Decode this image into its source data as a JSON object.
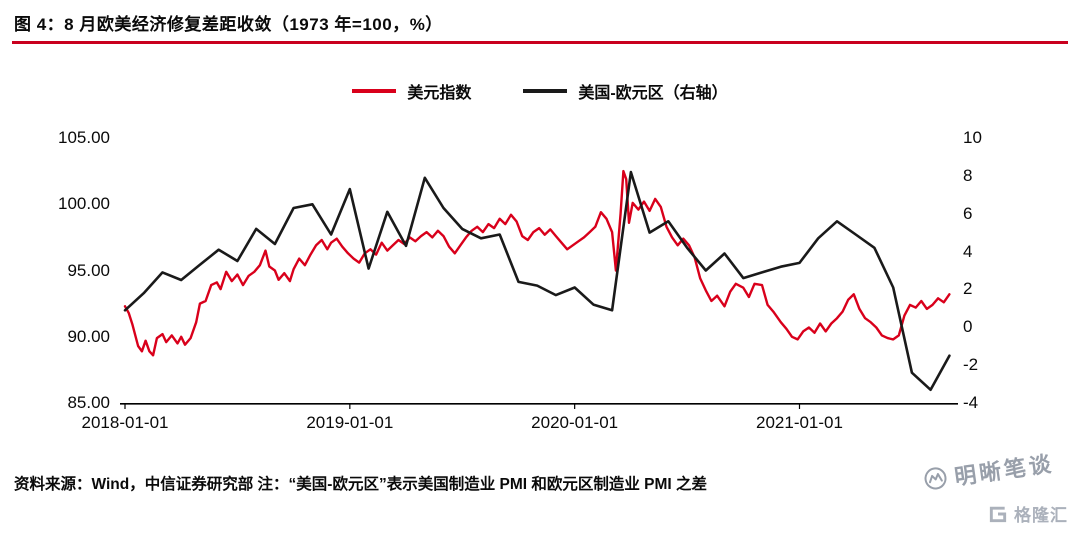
{
  "title": "图 4：8 月欧美经济修复差距收敛（1973 年=100，%）",
  "legend": [
    {
      "label": "美元指数",
      "color": "#d9001b"
    },
    {
      "label": "美国-欧元区（右轴）",
      "color": "#1a1a1a"
    }
  ],
  "source_note": "资料来源：Wind，中信证券研究部  注：“美国-欧元区”表示美国制造业 PMI 和欧元区制造业 PMI 之差",
  "watermark_text": "明晰笔谈",
  "logo_text": "格隆汇",
  "colors": {
    "divider": "#c9001e",
    "usd_line": "#d9001b",
    "pmi_line": "#1a1a1a",
    "axis": "#000000"
  },
  "chart_data": {
    "type": "line",
    "title": "8 月欧美经济修复差距收敛（1973 年=100，%）",
    "grid": false,
    "legend_position": "top-center",
    "t_unit": "months since 2018-01-01",
    "t_max": 44.3,
    "x_axis": {
      "ticks": [
        {
          "t": 0,
          "label": "2018-01-01"
        },
        {
          "t": 12,
          "label": "2019-01-01"
        },
        {
          "t": 24,
          "label": "2020-01-01"
        },
        {
          "t": 36,
          "label": "2021-01-01"
        }
      ]
    },
    "left_axis": {
      "range": [
        85,
        105
      ],
      "ticks": [
        {
          "v": 85,
          "label": "85.00"
        },
        {
          "v": 90,
          "label": "90.00"
        },
        {
          "v": 95,
          "label": "95.00"
        },
        {
          "v": 100,
          "label": "100.00"
        },
        {
          "v": 105,
          "label": "105.00"
        }
      ]
    },
    "right_axis": {
      "range": [
        -4,
        10
      ],
      "ticks": [
        {
          "v": -4,
          "label": "-4"
        },
        {
          "v": -2,
          "label": "-2"
        },
        {
          "v": 0,
          "label": "0"
        },
        {
          "v": 2,
          "label": "2"
        },
        {
          "v": 4,
          "label": "4"
        },
        {
          "v": 6,
          "label": "6"
        },
        {
          "v": 8,
          "label": "8"
        },
        {
          "v": 10,
          "label": "10"
        }
      ]
    },
    "series": [
      {
        "key": "usd-index",
        "name": "美元指数",
        "axis": "left",
        "color": "#d9001b",
        "width": 2.4,
        "points": [
          [
            0,
            92.3
          ],
          [
            0.2,
            91.8
          ],
          [
            0.4,
            90.9
          ],
          [
            0.7,
            89.3
          ],
          [
            0.9,
            88.9
          ],
          [
            1.1,
            89.7
          ],
          [
            1.3,
            88.9
          ],
          [
            1.5,
            88.6
          ],
          [
            1.7,
            89.9
          ],
          [
            2,
            90.2
          ],
          [
            2.2,
            89.6
          ],
          [
            2.5,
            90.1
          ],
          [
            2.8,
            89.5
          ],
          [
            3,
            90
          ],
          [
            3.2,
            89.4
          ],
          [
            3.5,
            89.9
          ],
          [
            3.8,
            91.1
          ],
          [
            4,
            92.5
          ],
          [
            4.3,
            92.7
          ],
          [
            4.6,
            93.9
          ],
          [
            4.9,
            94.1
          ],
          [
            5.1,
            93.6
          ],
          [
            5.4,
            94.9
          ],
          [
            5.7,
            94.2
          ],
          [
            6,
            94.7
          ],
          [
            6.3,
            93.9
          ],
          [
            6.6,
            94.6
          ],
          [
            6.9,
            94.9
          ],
          [
            7.2,
            95.4
          ],
          [
            7.5,
            96.5
          ],
          [
            7.7,
            95.3
          ],
          [
            8,
            95
          ],
          [
            8.2,
            94.3
          ],
          [
            8.5,
            94.8
          ],
          [
            8.8,
            94.2
          ],
          [
            9,
            95.1
          ],
          [
            9.3,
            95.9
          ],
          [
            9.6,
            95.4
          ],
          [
            9.9,
            96.2
          ],
          [
            10.2,
            96.9
          ],
          [
            10.5,
            97.3
          ],
          [
            10.8,
            96.6
          ],
          [
            11,
            97.1
          ],
          [
            11.3,
            97.4
          ],
          [
            11.6,
            96.8
          ],
          [
            11.9,
            96.3
          ],
          [
            12.2,
            95.9
          ],
          [
            12.5,
            95.6
          ],
          [
            12.8,
            96.3
          ],
          [
            13.1,
            96.6
          ],
          [
            13.4,
            96.2
          ],
          [
            13.7,
            97.1
          ],
          [
            14,
            96.5
          ],
          [
            14.3,
            96.9
          ],
          [
            14.6,
            97.3
          ],
          [
            14.9,
            97
          ],
          [
            15.2,
            97.5
          ],
          [
            15.5,
            97.2
          ],
          [
            15.8,
            97.6
          ],
          [
            16.1,
            97.9
          ],
          [
            16.4,
            97.5
          ],
          [
            16.7,
            98
          ],
          [
            17,
            97.6
          ],
          [
            17.3,
            96.8
          ],
          [
            17.6,
            96.3
          ],
          [
            17.9,
            96.9
          ],
          [
            18.2,
            97.5
          ],
          [
            18.5,
            98
          ],
          [
            18.8,
            98.3
          ],
          [
            19.1,
            97.9
          ],
          [
            19.4,
            98.5
          ],
          [
            19.7,
            98.2
          ],
          [
            20,
            98.9
          ],
          [
            20.3,
            98.5
          ],
          [
            20.6,
            99.2
          ],
          [
            20.9,
            98.7
          ],
          [
            21.2,
            97.6
          ],
          [
            21.5,
            97.3
          ],
          [
            21.8,
            97.9
          ],
          [
            22.1,
            98.2
          ],
          [
            22.4,
            97.7
          ],
          [
            22.7,
            98.1
          ],
          [
            23,
            97.6
          ],
          [
            23.3,
            97.1
          ],
          [
            23.6,
            96.6
          ],
          [
            23.9,
            96.9
          ],
          [
            24.2,
            97.2
          ],
          [
            24.5,
            97.5
          ],
          [
            24.8,
            97.9
          ],
          [
            25.1,
            98.3
          ],
          [
            25.4,
            99.4
          ],
          [
            25.7,
            98.9
          ],
          [
            26,
            97.9
          ],
          [
            26.2,
            95
          ],
          [
            26.45,
            99.3
          ],
          [
            26.6,
            102.5
          ],
          [
            26.75,
            101.9
          ],
          [
            26.9,
            98.6
          ],
          [
            27.1,
            100.1
          ],
          [
            27.4,
            99.6
          ],
          [
            27.7,
            100.2
          ],
          [
            28,
            99.5
          ],
          [
            28.3,
            100.4
          ],
          [
            28.6,
            99.8
          ],
          [
            28.9,
            98.3
          ],
          [
            29.2,
            97.5
          ],
          [
            29.5,
            96.9
          ],
          [
            29.8,
            97.4
          ],
          [
            30.1,
            96.9
          ],
          [
            30.4,
            96
          ],
          [
            30.7,
            94.4
          ],
          [
            31,
            93.5
          ],
          [
            31.3,
            92.7
          ],
          [
            31.6,
            93.1
          ],
          [
            32,
            92.3
          ],
          [
            32.3,
            93.4
          ],
          [
            32.6,
            94
          ],
          [
            33,
            93.7
          ],
          [
            33.3,
            93
          ],
          [
            33.6,
            94
          ],
          [
            34,
            93.9
          ],
          [
            34.3,
            92.4
          ],
          [
            34.6,
            91.9
          ],
          [
            35,
            91.1
          ],
          [
            35.3,
            90.6
          ],
          [
            35.6,
            90
          ],
          [
            35.9,
            89.8
          ],
          [
            36.2,
            90.4
          ],
          [
            36.5,
            90.7
          ],
          [
            36.8,
            90.3
          ],
          [
            37.1,
            91
          ],
          [
            37.4,
            90.4
          ],
          [
            37.7,
            91
          ],
          [
            38,
            91.4
          ],
          [
            38.3,
            91.9
          ],
          [
            38.6,
            92.8
          ],
          [
            38.9,
            93.2
          ],
          [
            39.2,
            92.1
          ],
          [
            39.5,
            91.4
          ],
          [
            39.8,
            91.1
          ],
          [
            40.1,
            90.7
          ],
          [
            40.4,
            90.1
          ],
          [
            40.7,
            89.9
          ],
          [
            41,
            89.8
          ],
          [
            41.3,
            90.1
          ],
          [
            41.6,
            91.6
          ],
          [
            41.9,
            92.4
          ],
          [
            42.2,
            92.2
          ],
          [
            42.5,
            92.7
          ],
          [
            42.8,
            92.1
          ],
          [
            43.1,
            92.4
          ],
          [
            43.4,
            92.9
          ],
          [
            43.7,
            92.6
          ],
          [
            44,
            93.2
          ]
        ]
      },
      {
        "key": "us-eurozone",
        "name": "美国-欧元区（右轴）",
        "axis": "right",
        "color": "#1a1a1a",
        "width": 2.6,
        "points": [
          [
            0,
            0.9
          ],
          [
            1,
            1.8
          ],
          [
            2,
            2.9
          ],
          [
            3,
            2.5
          ],
          [
            4,
            3.3
          ],
          [
            5,
            4.1
          ],
          [
            6,
            3.5
          ],
          [
            7,
            5.2
          ],
          [
            8,
            4.4
          ],
          [
            9,
            6.3
          ],
          [
            10,
            6.5
          ],
          [
            11,
            4.9
          ],
          [
            12,
            7.3
          ],
          [
            13,
            3.1
          ],
          [
            14,
            6.1
          ],
          [
            15,
            4.3
          ],
          [
            16,
            7.9
          ],
          [
            17,
            6.3
          ],
          [
            18,
            5.2
          ],
          [
            19,
            4.7
          ],
          [
            20,
            4.9
          ],
          [
            21,
            2.4
          ],
          [
            22,
            2.2
          ],
          [
            23,
            1.7
          ],
          [
            24,
            2.1
          ],
          [
            25,
            1.2
          ],
          [
            26,
            0.9
          ],
          [
            27,
            8.2
          ],
          [
            28,
            5
          ],
          [
            29,
            5.6
          ],
          [
            30,
            4.2
          ],
          [
            31,
            3
          ],
          [
            32,
            3.9
          ],
          [
            33,
            2.6
          ],
          [
            34,
            2.9
          ],
          [
            35,
            3.2
          ],
          [
            36,
            3.4
          ],
          [
            37,
            4.7
          ],
          [
            38,
            5.6
          ],
          [
            39,
            4.9
          ],
          [
            40,
            4.2
          ],
          [
            41,
            2.1
          ],
          [
            42,
            -2.4
          ],
          [
            43,
            -3.3
          ],
          [
            44,
            -1.5
          ]
        ]
      }
    ]
  }
}
